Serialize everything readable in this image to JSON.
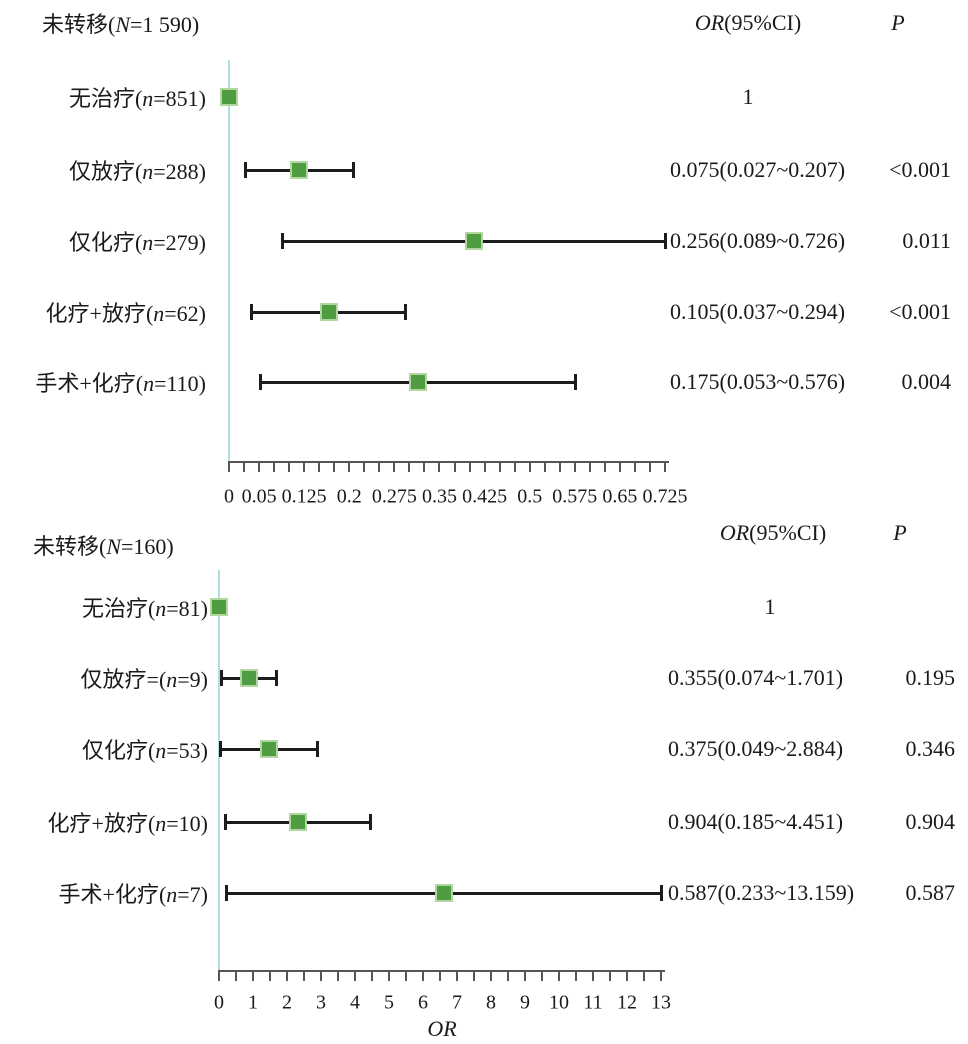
{
  "figure": {
    "kind": "forest-plot",
    "or_header": "OR(95%CI)",
    "p_header": "P"
  },
  "colors": {
    "marker_fill": "#4f9c42",
    "marker_border": "#b2d6a0",
    "ref_line": "#aedde2",
    "ci": "#1c1c1c",
    "axis": "#555555",
    "text": "#1a1a1a",
    "background": "#ffffff"
  },
  "chart_data": [
    {
      "type": "forest",
      "title": "未转移(N=1 590)",
      "title_segments": [
        {
          "t": "未转移(",
          "i": 0
        },
        {
          "t": "N",
          "i": 1
        },
        {
          "t": "=1 590)",
          "i": 0
        }
      ],
      "or_header_segments": [
        {
          "t": "OR",
          "i": 1
        },
        {
          "t": "(95%CI)",
          "i": 0
        }
      ],
      "p_header": "P",
      "xlabel": "",
      "axis": {
        "min": 0,
        "max": 0.725,
        "minor_step": 0.025,
        "tick_labels": [
          {
            "v": 0,
            "t": "0"
          },
          {
            "v": 0.05,
            "t": "0.05"
          },
          {
            "v": 0.125,
            "t": "0.125"
          },
          {
            "v": 0.2,
            "t": "0.2"
          },
          {
            "v": 0.275,
            "t": "0.275"
          },
          {
            "v": 0.35,
            "t": "0.35"
          },
          {
            "v": 0.425,
            "t": "0.425"
          },
          {
            "v": 0.5,
            "t": "0.5"
          },
          {
            "v": 0.575,
            "t": "0.575"
          },
          {
            "v": 0.65,
            "t": "0.65"
          },
          {
            "v": 0.725,
            "t": "0.725"
          }
        ]
      },
      "rows": [
        {
          "label": "无治疗(n=851)",
          "label_segments": [
            {
              "t": "无治疗(",
              "i": 0
            },
            {
              "t": "n",
              "i": 1
            },
            {
              "t": "=851)",
              "i": 0
            }
          ],
          "or_text": "1",
          "p_text": "",
          "or": 1,
          "ci": null
        },
        {
          "label": "仅放疗(n=288)",
          "label_segments": [
            {
              "t": "仅放疗(",
              "i": 0
            },
            {
              "t": "n",
              "i": 1
            },
            {
              "t": "=288)",
              "i": 0
            }
          ],
          "or_text": "0.075(0.027~0.207)",
          "p_text": "<0.001",
          "or": 0.075,
          "ci": [
            0.027,
            0.207
          ]
        },
        {
          "label": "仅化疗(n=279)",
          "label_segments": [
            {
              "t": "仅化疗(",
              "i": 0
            },
            {
              "t": "n",
              "i": 1
            },
            {
              "t": "=279)",
              "i": 0
            }
          ],
          "or_text": "0.256(0.089~0.726)",
          "p_text": "0.011",
          "or": 0.256,
          "ci": [
            0.089,
            0.726
          ]
        },
        {
          "label": "化疗+放疗(n=62)",
          "label_segments": [
            {
              "t": "化疗+放疗(",
              "i": 0
            },
            {
              "t": "n",
              "i": 1
            },
            {
              "t": "=62)",
              "i": 0
            }
          ],
          "or_text": "0.105(0.037~0.294)",
          "p_text": "<0.001",
          "or": 0.105,
          "ci": [
            0.037,
            0.294
          ]
        },
        {
          "label": "手术+化疗(n=110)",
          "label_segments": [
            {
              "t": "手术+化疗(",
              "i": 0
            },
            {
              "t": "n",
              "i": 1
            },
            {
              "t": "=110)",
              "i": 0
            }
          ],
          "or_text": "0.175(0.053~0.576)",
          "p_text": "0.004",
          "or": 0.175,
          "ci": [
            0.053,
            0.576
          ]
        }
      ]
    },
    {
      "type": "forest",
      "title": "未转移(N=160)",
      "title_segments": [
        {
          "t": "未转移(",
          "i": 0
        },
        {
          "t": "N",
          "i": 1
        },
        {
          "t": "=160)",
          "i": 0
        }
      ],
      "or_header_segments": [
        {
          "t": "OR",
          "i": 1
        },
        {
          "t": "(95%CI)",
          "i": 0
        }
      ],
      "p_header": "P",
      "xlabel": "OR",
      "axis": {
        "min": 0,
        "max": 13,
        "minor_step": 0.5,
        "tick_labels": [
          {
            "v": 0,
            "t": "0"
          },
          {
            "v": 1,
            "t": "1"
          },
          {
            "v": 2,
            "t": "2"
          },
          {
            "v": 3,
            "t": "3"
          },
          {
            "v": 4,
            "t": "4"
          },
          {
            "v": 5,
            "t": "5"
          },
          {
            "v": 6,
            "t": "6"
          },
          {
            "v": 7,
            "t": "7"
          },
          {
            "v": 8,
            "t": "8"
          },
          {
            "v": 9,
            "t": "9"
          },
          {
            "v": 10,
            "t": "10"
          },
          {
            "v": 11,
            "t": "11"
          },
          {
            "v": 12,
            "t": "12"
          },
          {
            "v": 13,
            "t": "13"
          }
        ]
      },
      "rows": [
        {
          "label": "无治疗(n=81)",
          "label_segments": [
            {
              "t": "无治疗(",
              "i": 0
            },
            {
              "t": "n",
              "i": 1
            },
            {
              "t": "=81)",
              "i": 0
            }
          ],
          "or_text": "1",
          "p_text": "",
          "or": 1,
          "ci": null
        },
        {
          "label": "仅放疗=(n=9)",
          "label_segments": [
            {
              "t": "仅放疗=(",
              "i": 0
            },
            {
              "t": "n",
              "i": 1
            },
            {
              "t": "=9)",
              "i": 0
            }
          ],
          "or_text": "0.355(0.074~1.701)",
          "p_text": "0.195",
          "or": 0.355,
          "ci": [
            0.074,
            1.701
          ]
        },
        {
          "label": "仅化疗(n=53)",
          "label_segments": [
            {
              "t": "仅化疗(",
              "i": 0
            },
            {
              "t": "n",
              "i": 1
            },
            {
              "t": "=53)",
              "i": 0
            }
          ],
          "or_text": "0.375(0.049~2.884)",
          "p_text": "0.346",
          "or": 0.375,
          "ci": [
            0.049,
            2.884
          ]
        },
        {
          "label": "化疗+放疗(n=10)",
          "label_segments": [
            {
              "t": "化疗+放疗(",
              "i": 0
            },
            {
              "t": "n",
              "i": 1
            },
            {
              "t": "=10)",
              "i": 0
            }
          ],
          "or_text": "0.904(0.185~4.451)",
          "p_text": "0.904",
          "or": 0.904,
          "ci": [
            0.185,
            4.451
          ]
        },
        {
          "label": "手术+化疗(n=7)",
          "label_segments": [
            {
              "t": "手术+化疗(",
              "i": 0
            },
            {
              "t": "n",
              "i": 1
            },
            {
              "t": "=7)",
              "i": 0
            }
          ],
          "or_text": "0.587(0.233~13.159)",
          "p_text": "0.587",
          "or": 0.587,
          "ci": [
            0.233,
            13.159
          ]
        }
      ]
    }
  ]
}
